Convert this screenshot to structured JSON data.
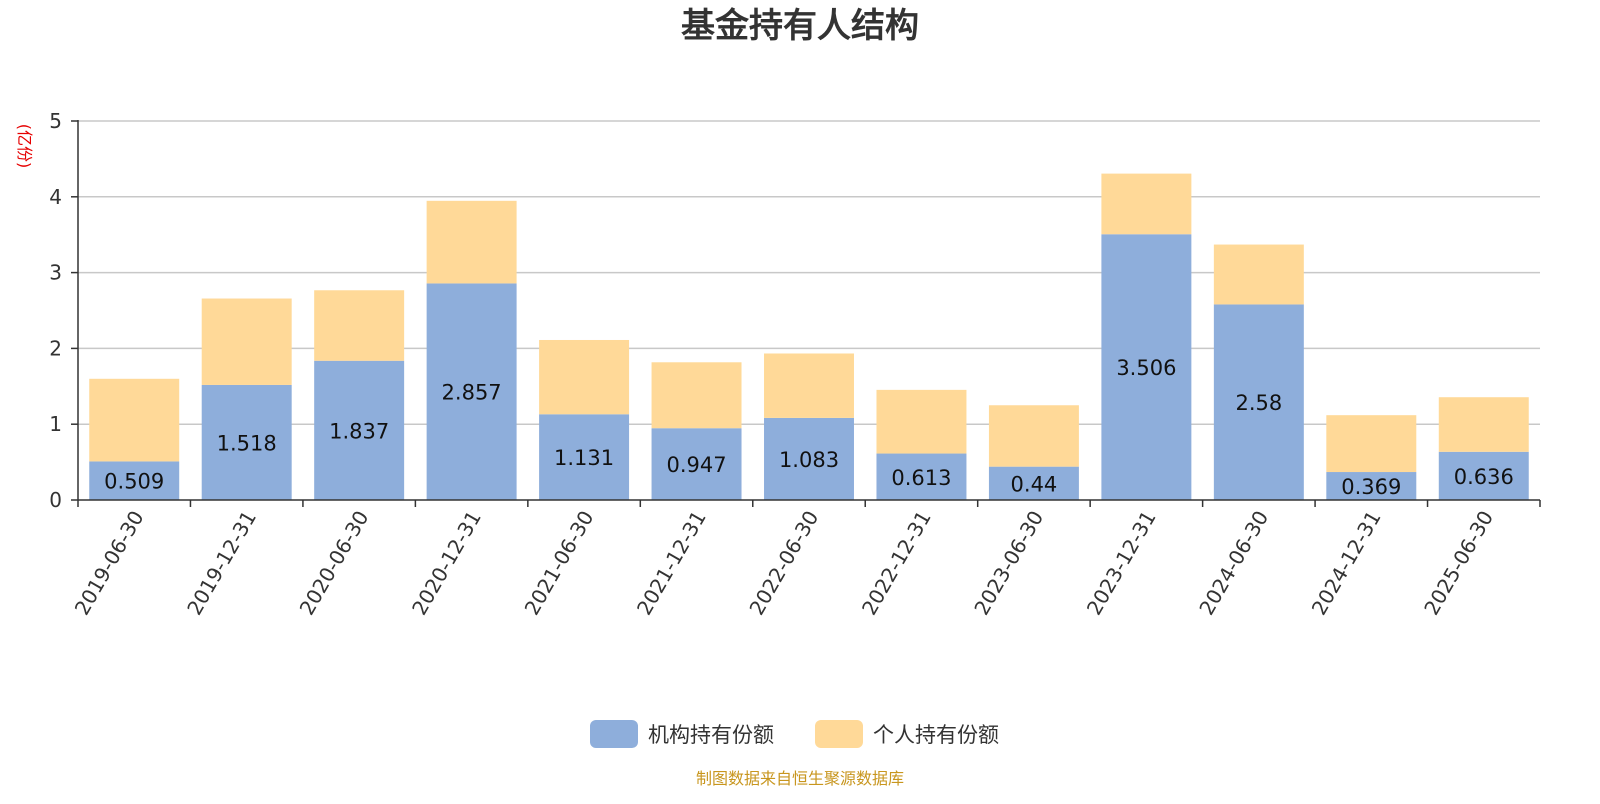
{
  "chart_data": {
    "type": "bar",
    "stacked": true,
    "title": "基金持有人结构",
    "unit_label": "(亿份)",
    "categories": [
      "2019-06-30",
      "2019-12-31",
      "2020-06-30",
      "2020-12-31",
      "2021-06-30",
      "2021-12-31",
      "2022-06-30",
      "2022-12-31",
      "2023-06-30",
      "2023-12-31",
      "2024-06-30",
      "2024-12-31",
      "2025-06-30"
    ],
    "series": [
      {
        "name": "机构持有份额",
        "color": "#8eaedb",
        "values": [
          0.509,
          1.518,
          1.837,
          2.857,
          1.131,
          0.947,
          1.083,
          0.613,
          0.44,
          3.506,
          2.58,
          0.369,
          0.636
        ],
        "labels": [
          "0.509",
          "1.518",
          "1.837",
          "2.857",
          "1.131",
          "0.947",
          "1.083",
          "0.613",
          "0.44",
          "3.506",
          "2.58",
          "0.369",
          "0.636"
        ]
      },
      {
        "name": "个人持有份额",
        "color": "#ffd998",
        "values": [
          1.09,
          1.14,
          0.93,
          1.09,
          0.98,
          0.87,
          0.85,
          0.84,
          0.81,
          0.8,
          0.79,
          0.75,
          0.72
        ]
      }
    ],
    "yticks": [
      "0",
      "1",
      "2",
      "3",
      "4",
      "5"
    ],
    "ylim": [
      0,
      5
    ],
    "grid": true,
    "legend_position": "bottom-center"
  },
  "footer": {
    "source": "制图数据来自恒生聚源数据库"
  }
}
